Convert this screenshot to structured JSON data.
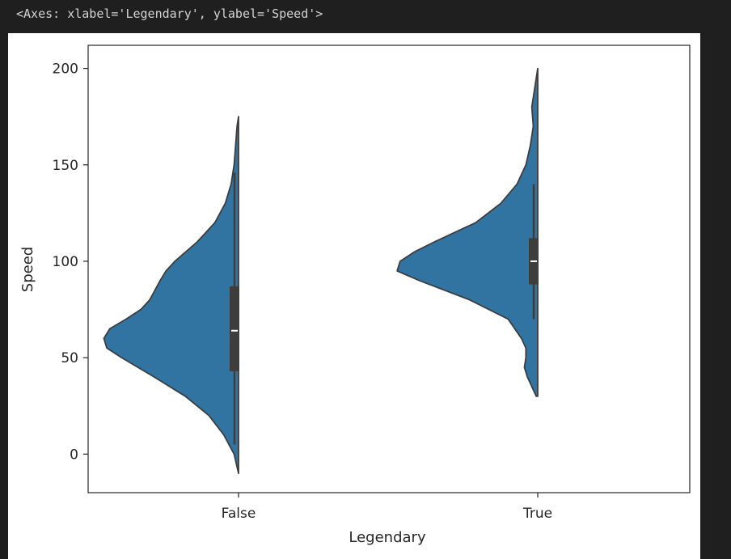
{
  "output_repr": "<Axes: xlabel='Legendary', ylabel='Speed'>",
  "colors": {
    "violin_fill": "#3274a1",
    "violin_edge": "#3d3d3d",
    "box": "#3d3d3d",
    "median": "#ffffff",
    "background": "#1f1f1f"
  },
  "chart_data": {
    "type": "violin",
    "split": true,
    "title": "",
    "xlabel": "Legendary",
    "ylabel": "Speed",
    "categories": [
      "False",
      "True"
    ],
    "ylim": [
      -20,
      212
    ],
    "yticks": [
      0,
      50,
      100,
      150,
      200
    ],
    "grid": false,
    "series": [
      {
        "category": "False",
        "side": "left",
        "range": [
          -10,
          175
        ],
        "quartiles": {
          "q1": 43,
          "median": 64,
          "q3": 87
        },
        "whiskers": [
          5,
          146
        ],
        "density": [
          [
            -10,
            0
          ],
          [
            0,
            0.03
          ],
          [
            10,
            0.1
          ],
          [
            20,
            0.2
          ],
          [
            30,
            0.36
          ],
          [
            40,
            0.57
          ],
          [
            50,
            0.79
          ],
          [
            55,
            0.89
          ],
          [
            60,
            0.91
          ],
          [
            65,
            0.87
          ],
          [
            70,
            0.76
          ],
          [
            75,
            0.66
          ],
          [
            80,
            0.6
          ],
          [
            90,
            0.53
          ],
          [
            95,
            0.49
          ],
          [
            100,
            0.43
          ],
          [
            110,
            0.28
          ],
          [
            120,
            0.16
          ],
          [
            130,
            0.09
          ],
          [
            140,
            0.05
          ],
          [
            150,
            0.03
          ],
          [
            160,
            0.02
          ],
          [
            170,
            0.01
          ],
          [
            175,
            0
          ]
        ]
      },
      {
        "category": "True",
        "side": "left",
        "range": [
          30,
          200
        ],
        "quartiles": {
          "q1": 88,
          "median": 100,
          "q3": 112
        },
        "whiskers": [
          70,
          140
        ],
        "density": [
          [
            30,
            0.01
          ],
          [
            35,
            0.04
          ],
          [
            40,
            0.07
          ],
          [
            45,
            0.09
          ],
          [
            50,
            0.08
          ],
          [
            55,
            0.08
          ],
          [
            60,
            0.11
          ],
          [
            70,
            0.2
          ],
          [
            80,
            0.46
          ],
          [
            90,
            0.8
          ],
          [
            95,
            0.95
          ],
          [
            100,
            0.93
          ],
          [
            105,
            0.83
          ],
          [
            110,
            0.7
          ],
          [
            115,
            0.56
          ],
          [
            120,
            0.42
          ],
          [
            130,
            0.25
          ],
          [
            140,
            0.14
          ],
          [
            150,
            0.08
          ],
          [
            160,
            0.05
          ],
          [
            170,
            0.03
          ],
          [
            180,
            0.04
          ],
          [
            190,
            0.02
          ],
          [
            200,
            0
          ]
        ]
      }
    ]
  }
}
